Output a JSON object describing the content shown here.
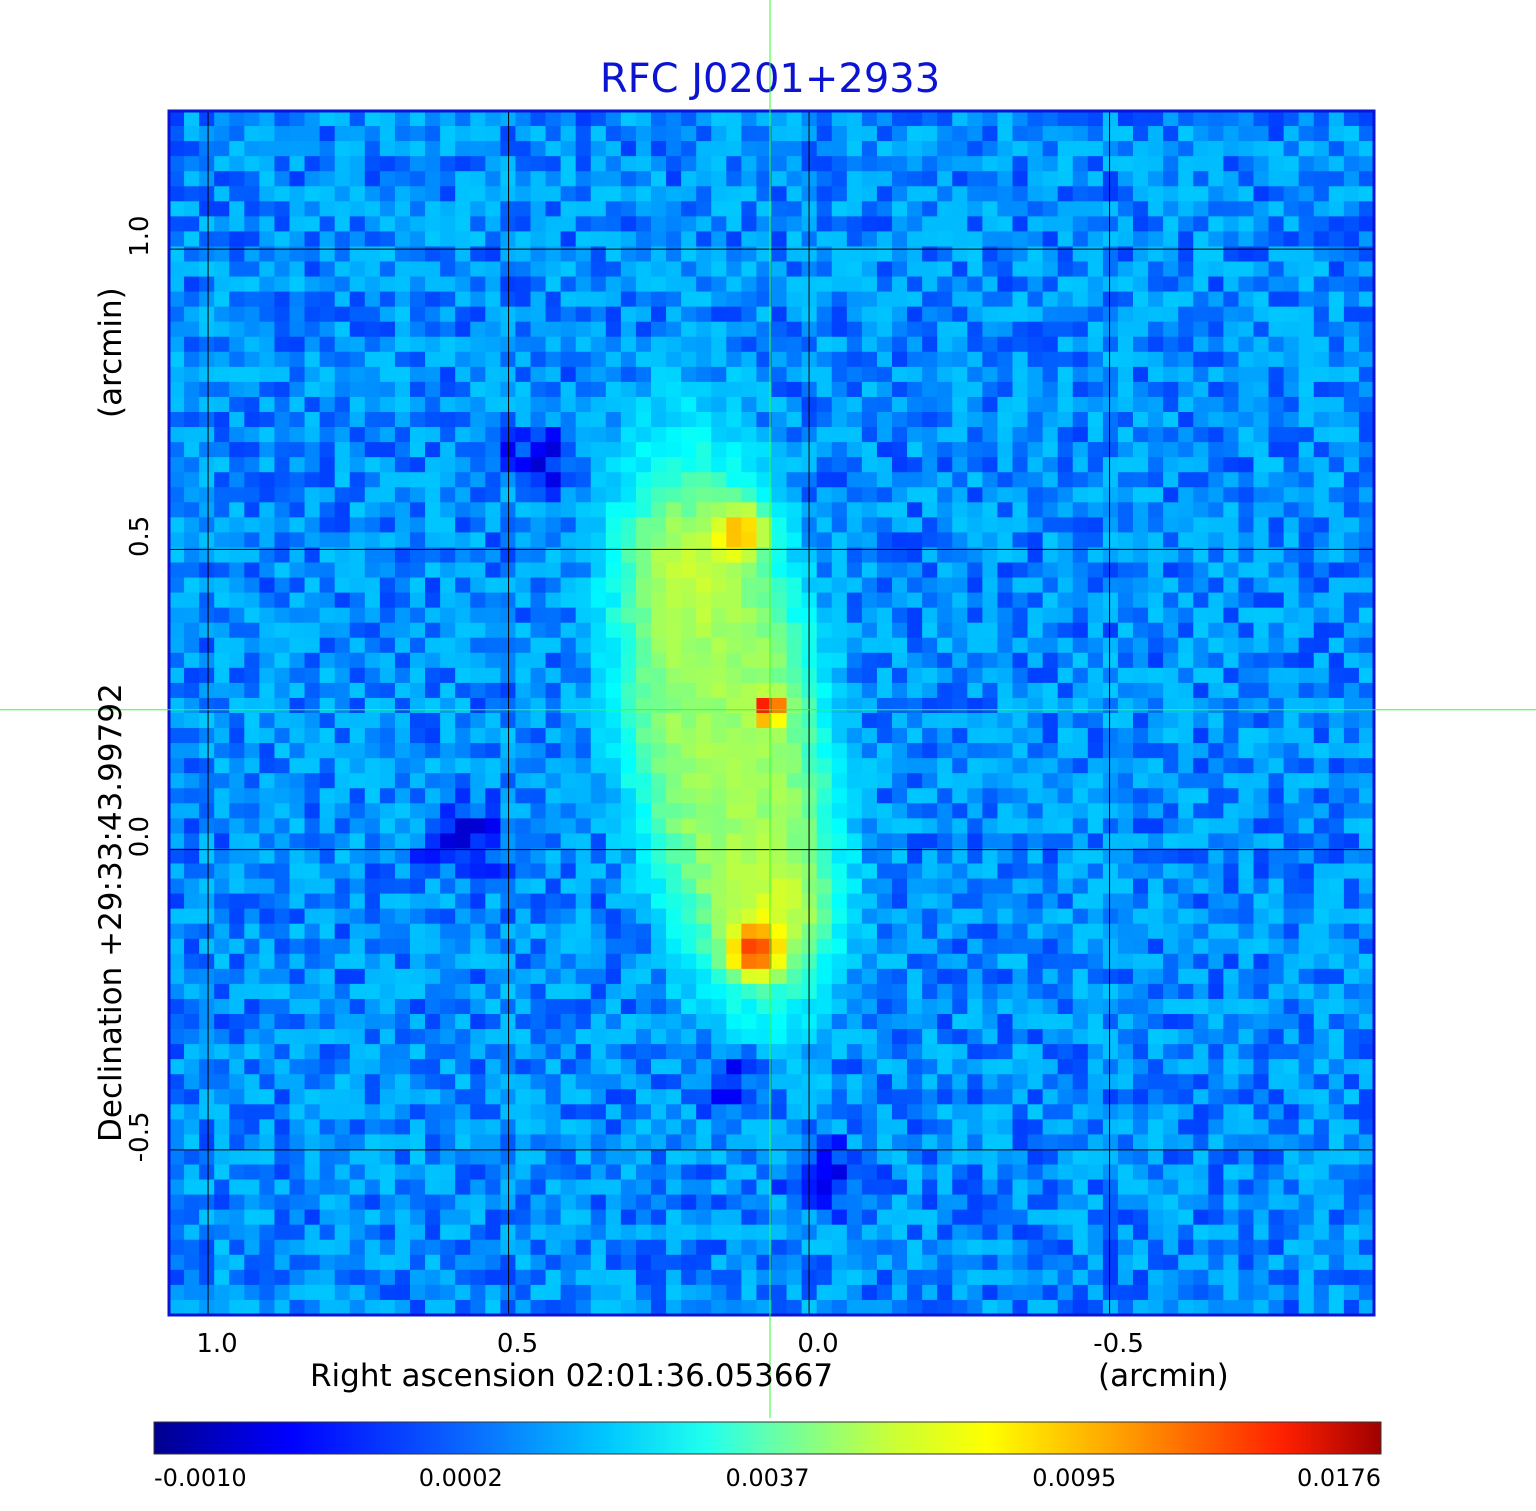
{
  "chart_data": {
    "type": "heatmap",
    "title": "RFC J0201+2933",
    "xlabel": "Right ascension  02:01:36.053667",
    "xlabel_unit": "(arcmin)",
    "ylabel": "Declination  +29:33:43.99792",
    "ylabel_unit": "(arcmin)",
    "xlim": [
      1.065,
      -0.94
    ],
    "ylim": [
      -0.775,
      1.23
    ],
    "x_ticks": [
      1.0,
      0.5,
      0.0,
      -0.5
    ],
    "x_tick_labels": [
      "1.0",
      "0.5",
      "0.0",
      "-0.5"
    ],
    "y_ticks": [
      1.0,
      0.5,
      0.0,
      -0.5
    ],
    "y_tick_labels": [
      "1.0",
      "0.5",
      "0.0",
      "-0.5"
    ],
    "grid": true,
    "crosshair": {
      "x": 0.065,
      "y": 0.233
    },
    "colorscale": "jet",
    "colorbar": {
      "ticks": [
        -0.001,
        0.0002,
        0.0037,
        0.0095,
        0.0176
      ],
      "labels": [
        "-0.0010",
        "0.0002",
        "0.0037",
        "0.0095",
        "0.0176"
      ]
    },
    "background_level": 0.0,
    "components": [
      {
        "name": "core",
        "x": 0.065,
        "y": 0.233,
        "peak": 0.0176
      },
      {
        "name": "north-hotspot",
        "x": 0.11,
        "y": 0.53,
        "peak": 0.0095
      },
      {
        "name": "north-lobe",
        "x": 0.2,
        "y": 0.48,
        "peak": 0.0065
      },
      {
        "name": "south-hotspot",
        "x": 0.09,
        "y": -0.17,
        "peak": 0.0125
      },
      {
        "name": "south-lobe",
        "x": 0.05,
        "y": -0.1,
        "peak": 0.0075
      }
    ],
    "negative_regions": [
      {
        "x": 0.58,
        "y": 0.02,
        "depth": -0.001
      },
      {
        "x": 0.12,
        "y": -0.37,
        "depth": -0.001
      },
      {
        "x": -0.03,
        "y": -0.55,
        "depth": -0.0009
      },
      {
        "x": 0.45,
        "y": 0.65,
        "depth": -0.0008
      }
    ]
  }
}
